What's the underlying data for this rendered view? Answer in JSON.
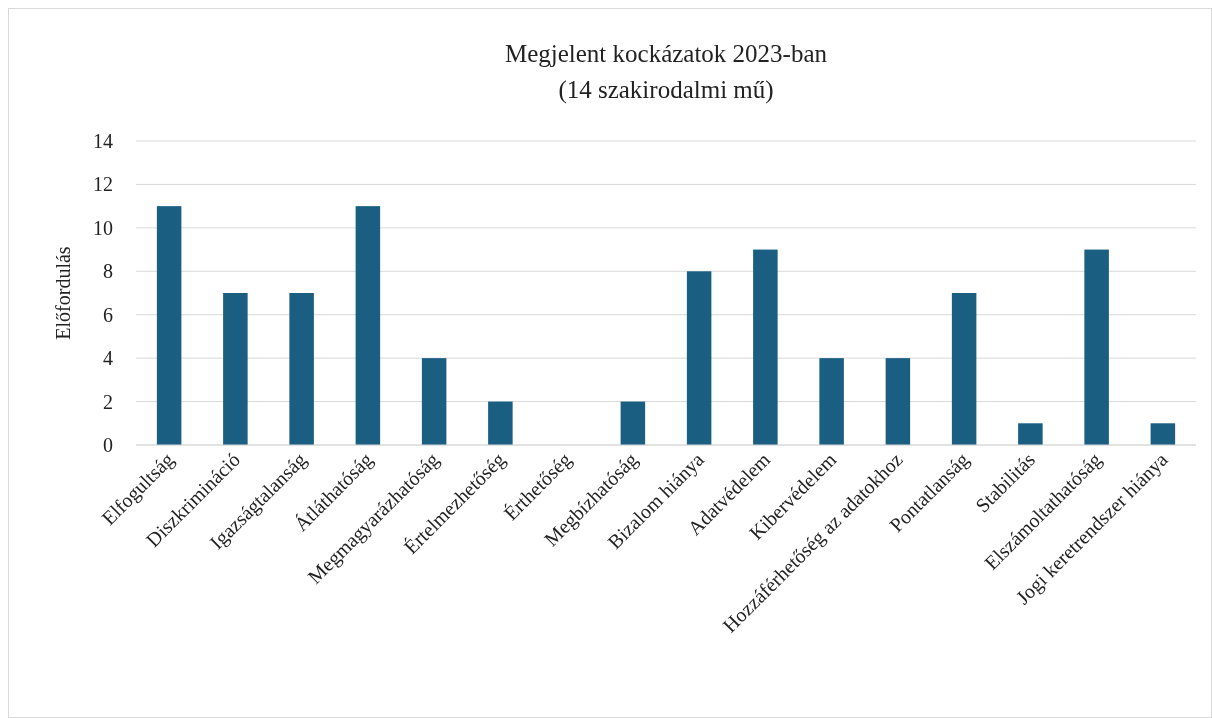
{
  "chart_data": {
    "type": "bar",
    "title": "Megjelent kockázatok 2023-ban",
    "subtitle": "(14 szakirodalmi mű)",
    "ylabel": "Előfordulás",
    "categories": [
      "Elfogultság",
      "Diszkrimináció",
      "Igazságtalanság",
      "Átláthatóság",
      "Megmagyarázhatóság",
      "Értelmezhetőség",
      "Érthetőség",
      "Megbízhatóság",
      "Bizalom hiánya",
      "Adatvédelem",
      "Kibervédelem",
      "Hozzáférhetőség az adatokhoz",
      "Pontatlanság",
      "Stabilitás",
      "Elszámoltathatóság",
      "Jogi keretrendszer hiánya"
    ],
    "values": [
      11,
      7,
      7,
      11,
      4,
      2,
      0,
      2,
      8,
      9,
      4,
      4,
      7,
      1,
      9,
      1
    ],
    "color": "#1a5f82",
    "ylim": [
      0,
      14
    ],
    "yticks": [
      0,
      2,
      4,
      6,
      8,
      10,
      12,
      14
    ],
    "grid": "y"
  }
}
